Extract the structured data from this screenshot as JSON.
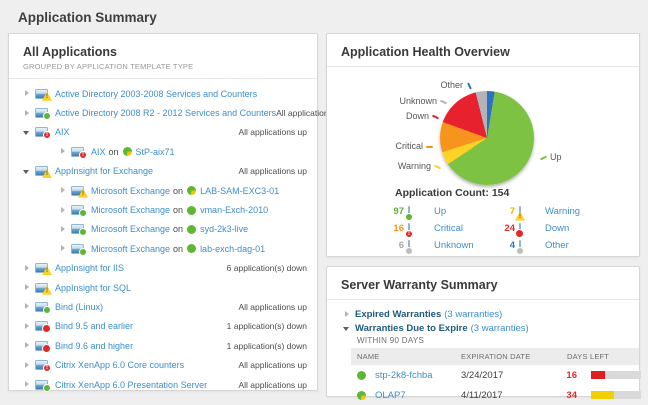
{
  "page": {
    "title": "Application Summary"
  },
  "left_panel": {
    "title": "All Applications",
    "subtitle": "GROUPED BY APPLICATION TEMPLATE TYPE",
    "rows": [
      {
        "label": "Active Directory 2003-2008 Services and Counters",
        "status_icon": "warning",
        "level": 0,
        "expander": "collapsed",
        "right": ""
      },
      {
        "label": "Active Directory 2008 R2 - 2012 Services and Counters",
        "status_icon": "up",
        "level": 0,
        "expander": "collapsed",
        "right": "All applications up"
      },
      {
        "label": "AIX",
        "status_icon": "critical",
        "level": 0,
        "expander": "expanded",
        "right": "All applications up"
      },
      {
        "label": "AIX",
        "on": "on",
        "node": "StP-aix71",
        "node_icon": "pie",
        "status_icon": "critical",
        "level": 1,
        "expander": "collapsed",
        "right": ""
      },
      {
        "label": "AppInsight for Exchange",
        "status_icon": "warning",
        "level": 0,
        "expander": "expanded",
        "right": "All applications up"
      },
      {
        "label": "Microsoft Exchange",
        "on": "on",
        "node": "LAB-SAM-EXC3-01",
        "node_icon": "pie",
        "status_icon": "warning",
        "level": 1,
        "expander": "collapsed",
        "right": ""
      },
      {
        "label": "Microsoft Exchange",
        "on": "on",
        "node": "vman-Exch-2010",
        "node_icon": "green",
        "status_icon": "up",
        "level": 1,
        "expander": "collapsed",
        "right": ""
      },
      {
        "label": "Microsoft Exchange",
        "on": "on",
        "node": "syd-2k3-live",
        "node_icon": "green",
        "status_icon": "up",
        "level": 1,
        "expander": "collapsed",
        "right": ""
      },
      {
        "label": "Microsoft Exchange",
        "on": "on",
        "node": "lab-exch-dag-01",
        "node_icon": "green",
        "status_icon": "up",
        "level": 1,
        "expander": "collapsed",
        "right": ""
      },
      {
        "label": "AppInsight for IIS",
        "status_icon": "warning",
        "level": 0,
        "expander": "collapsed",
        "right": "6 application(s) down"
      },
      {
        "label": "AppInsight for SQL",
        "status_icon": "warning",
        "level": 0,
        "expander": "collapsed",
        "right": ""
      },
      {
        "label": "Bind (Linux)",
        "status_icon": "up",
        "level": 0,
        "expander": "collapsed",
        "right": "All applications up"
      },
      {
        "label": "Bind 9.5 and earlier",
        "status_icon": "down",
        "level": 0,
        "expander": "collapsed",
        "right": "1 application(s) down"
      },
      {
        "label": "Bind 9.6 and higher",
        "status_icon": "down",
        "level": 0,
        "expander": "collapsed",
        "right": "1 application(s) down"
      },
      {
        "label": "Citrix XenApp 6.0 Core counters",
        "status_icon": "critical",
        "level": 0,
        "expander": "collapsed",
        "right": "All applications up"
      },
      {
        "label": "Citrix XenApp 6.0 Presentation Server",
        "status_icon": "up",
        "level": 0,
        "expander": "collapsed",
        "right": "All applications up"
      }
    ]
  },
  "health_panel": {
    "title": "Application Health Overview",
    "count_label": "Application Count:",
    "count_value": "154",
    "chart_data": {
      "type": "pie",
      "title": "Application Health Overview",
      "total": 154,
      "clockwise_order_from_top": [
        "Other",
        "Up",
        "Warning",
        "Critical",
        "Down",
        "Unknown"
      ],
      "series": [
        {
          "label": "Up",
          "value": 97,
          "color": "#7dc242"
        },
        {
          "label": "Warning",
          "value": 7,
          "color": "#ffd226"
        },
        {
          "label": "Critical",
          "value": 16,
          "color": "#f7941e"
        },
        {
          "label": "Down",
          "value": 24,
          "color": "#e8212e"
        },
        {
          "label": "Unknown",
          "value": 6,
          "color": "#b4b4b6"
        },
        {
          "label": "Other",
          "value": 4,
          "color": "#2a72c8"
        }
      ],
      "legend_position": "bottom"
    },
    "legend": [
      {
        "value": "97",
        "value_color": "#6aa839",
        "icon": "up",
        "label": "Up"
      },
      {
        "value": "7",
        "value_color": "#eead00",
        "icon": "warning",
        "label": "Warning"
      },
      {
        "value": "16",
        "value_color": "#f7941e",
        "icon": "critical",
        "label": "Critical"
      },
      {
        "value": "24",
        "value_color": "#e02a2a",
        "icon": "down",
        "label": "Down"
      },
      {
        "value": "6",
        "value_color": "#a9a9a9",
        "icon": "unknown",
        "label": "Unknown"
      },
      {
        "value": "4",
        "value_color": "#2a72c8",
        "icon": "unknown",
        "label": "Other"
      }
    ]
  },
  "warranty_panel": {
    "title": "Server Warranty Summary",
    "expired": {
      "label": "Expired Warranties",
      "count": "(3 warranties)"
    },
    "due": {
      "label": "Warranties Due to Expire",
      "count": "(3 warranties)",
      "within": "WITHIN 90 DAYS"
    },
    "table": {
      "headers": {
        "name": "NAME",
        "expiration": "EXPIRATION DATE",
        "days_left": "DAYS LEFT"
      },
      "rows": [
        {
          "name": "stp-2k8-fchba",
          "icon": "green",
          "expiration": "3/24/2017",
          "days_left": "16",
          "bar_pct": 28,
          "bar_color": "#dd1f1f"
        },
        {
          "name": "OLAP7",
          "icon": "pie",
          "expiration": "4/11/2017",
          "days_left": "34",
          "bar_pct": 46,
          "bar_color": "#f0d000"
        }
      ]
    }
  }
}
